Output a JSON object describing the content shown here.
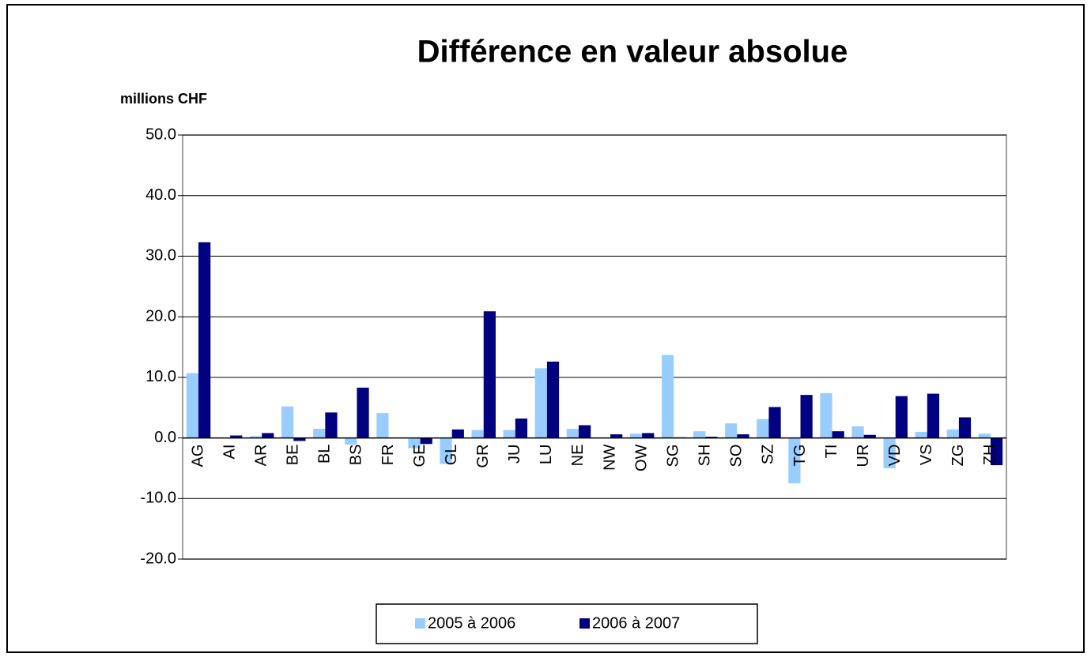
{
  "chart_data": {
    "type": "bar",
    "title": "Différence en valeur absolue",
    "y_label": "millions CHF",
    "categories": [
      "AG",
      "AI",
      "AR",
      "BE",
      "BL",
      "BS",
      "FR",
      "GE",
      "GL",
      "GR",
      "JU",
      "LU",
      "NE",
      "NW",
      "OW",
      "SG",
      "SH",
      "SO",
      "SZ",
      "TG",
      "TI",
      "UR",
      "VD",
      "VS",
      "ZG",
      "ZH"
    ],
    "series": [
      {
        "name": "2005 à 2006",
        "color": "#99ccff",
        "values": [
          10.7,
          0,
          0.3,
          5.2,
          1.5,
          -1.1,
          4.1,
          -1.7,
          -4.3,
          1.3,
          1.3,
          11.5,
          1.5,
          0,
          0.7,
          13.7,
          1.1,
          2.4,
          3.1,
          -7.5,
          7.4,
          1.9,
          -5.0,
          1.0,
          1.4,
          0.7
        ]
      },
      {
        "name": "2006 à 2007",
        "color": "#000080",
        "values": [
          32.3,
          0.4,
          0.8,
          -0.5,
          4.2,
          8.3,
          0,
          -1.0,
          1.4,
          20.9,
          3.2,
          12.6,
          2.1,
          0.6,
          0.8,
          0.1,
          0.2,
          0.6,
          5.1,
          7.1,
          1.1,
          0.5,
          6.9,
          7.3,
          3.4,
          -4.5
        ]
      }
    ],
    "ylim": [
      -20,
      50
    ],
    "yticks": [
      {
        "value": -20,
        "label": "-20.0"
      },
      {
        "value": -10,
        "label": "-10.0"
      },
      {
        "value": 0,
        "label": "0.0"
      },
      {
        "value": 10,
        "label": "10.0"
      },
      {
        "value": 20,
        "label": "20.0"
      },
      {
        "value": 30,
        "label": "30.0"
      },
      {
        "value": 40,
        "label": "40.0"
      },
      {
        "value": 50,
        "label": "50.0"
      }
    ],
    "grid": true,
    "legend": "bottom"
  }
}
